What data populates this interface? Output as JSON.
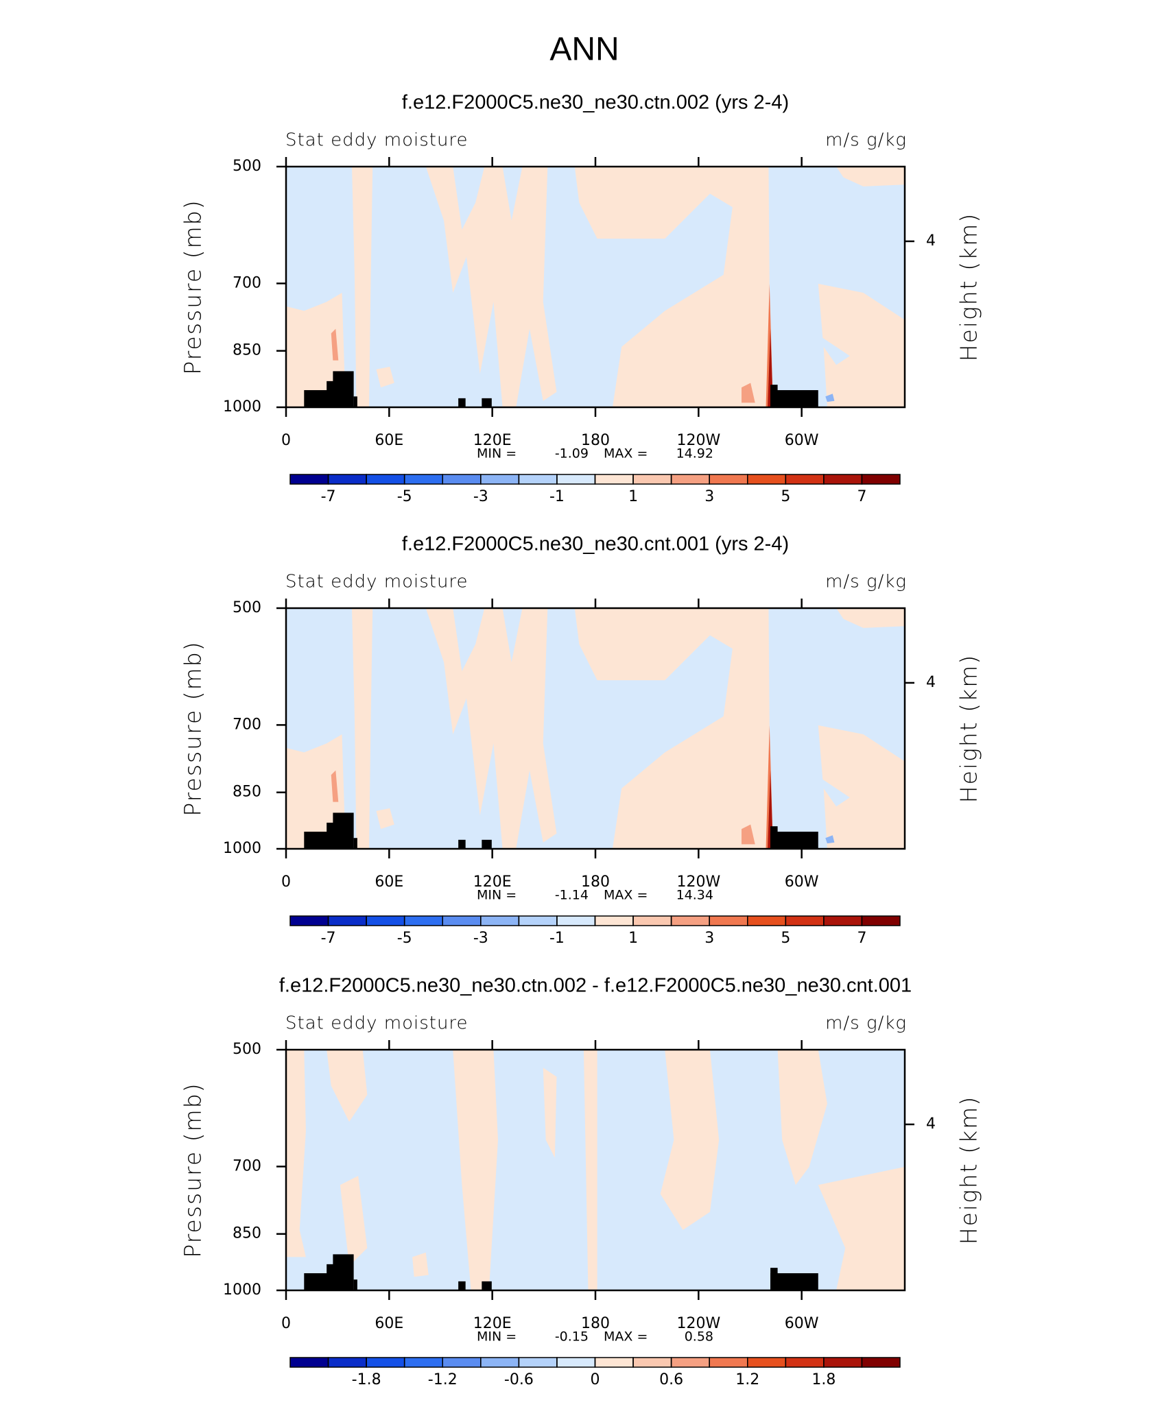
{
  "title": "ANN",
  "chart_data": [
    {
      "type": "contour",
      "title": "f.e12.F2000C5.ne30_ne30.ctn.002 (yrs 2-4)",
      "left_string": "Stat eddy moisture",
      "right_string": "m/s g/kg",
      "ylabel": "Pressure (mb)",
      "y2label": "Height (km)",
      "ylog": true,
      "ylim": [
        1000,
        500
      ],
      "yticks": [
        500,
        700,
        850,
        1000
      ],
      "y2lim": [
        0,
        5.8
      ],
      "y2ticks": [
        4
      ],
      "xlim": [
        0,
        360
      ],
      "xticks": [
        0,
        {
          "value": 60,
          "label": "60E"
        },
        {
          "value": 120,
          "label": "120E"
        },
        180,
        {
          "value": 240,
          "label": "120W"
        },
        {
          "value": 300,
          "label": "60W"
        }
      ],
      "min_label": "MIN =",
      "min": -1.09,
      "max_label": "MAX =",
      "max": 14.92,
      "colorbar": {
        "levels": [
          -7,
          -6,
          -5,
          -4,
          -3,
          -2,
          -1,
          0,
          1,
          2,
          3,
          4,
          5,
          6,
          7
        ],
        "ticks": [
          -7,
          -5,
          -3,
          -1,
          1,
          3,
          5,
          7
        ],
        "colors": [
          "#000090",
          "#0a2dc8",
          "#1450e6",
          "#2d6ef0",
          "#5a8cf0",
          "#8cb4f5",
          "#b4d2fa",
          "#d7e9fc",
          "#fde5d4",
          "#fac8b0",
          "#f5a082",
          "#f07850",
          "#e6501e",
          "#d23214",
          "#aa140a",
          "#800000"
        ]
      }
    },
    {
      "type": "contour",
      "title": "f.e12.F2000C5.ne30_ne30.cnt.001 (yrs 2-4)",
      "left_string": "Stat eddy moisture",
      "right_string": "m/s g/kg",
      "ylabel": "Pressure (mb)",
      "y2label": "Height (km)",
      "ylog": true,
      "ylim": [
        1000,
        500
      ],
      "yticks": [
        500,
        700,
        850,
        1000
      ],
      "y2lim": [
        0,
        5.8
      ],
      "y2ticks": [
        4
      ],
      "xlim": [
        0,
        360
      ],
      "xticks": [
        0,
        {
          "value": 60,
          "label": "60E"
        },
        {
          "value": 120,
          "label": "120E"
        },
        180,
        {
          "value": 240,
          "label": "120W"
        },
        {
          "value": 300,
          "label": "60W"
        }
      ],
      "min_label": "MIN =",
      "min": -1.14,
      "max_label": "MAX =",
      "max": 14.34,
      "colorbar": {
        "levels": [
          -7,
          -6,
          -5,
          -4,
          -3,
          -2,
          -1,
          0,
          1,
          2,
          3,
          4,
          5,
          6,
          7
        ],
        "ticks": [
          -7,
          -5,
          -3,
          -1,
          1,
          3,
          5,
          7
        ],
        "colors": [
          "#000090",
          "#0a2dc8",
          "#1450e6",
          "#2d6ef0",
          "#5a8cf0",
          "#8cb4f5",
          "#b4d2fa",
          "#d7e9fc",
          "#fde5d4",
          "#fac8b0",
          "#f5a082",
          "#f07850",
          "#e6501e",
          "#d23214",
          "#aa140a",
          "#800000"
        ]
      }
    },
    {
      "type": "contour",
      "title": "f.e12.F2000C5.ne30_ne30.ctn.002 - f.e12.F2000C5.ne30_ne30.cnt.001",
      "left_string": "Stat eddy moisture",
      "right_string": "m/s g/kg",
      "ylabel": "Pressure (mb)",
      "y2label": "Height (km)",
      "ylog": true,
      "ylim": [
        1000,
        500
      ],
      "yticks": [
        500,
        700,
        850,
        1000
      ],
      "y2lim": [
        0,
        5.8
      ],
      "y2ticks": [
        4
      ],
      "xlim": [
        0,
        360
      ],
      "xticks": [
        0,
        {
          "value": 60,
          "label": "60E"
        },
        {
          "value": 120,
          "label": "120E"
        },
        180,
        {
          "value": 240,
          "label": "120W"
        },
        {
          "value": 300,
          "label": "60W"
        }
      ],
      "min_label": "MIN =",
      "min": -0.15,
      "max_label": "MAX =",
      "max": 0.58,
      "colorbar": {
        "levels": [
          -2.1,
          -1.8,
          -1.5,
          -1.2,
          -0.9,
          -0.6,
          -0.3,
          0,
          0.3,
          0.6,
          0.9,
          1.2,
          1.5,
          1.8,
          2.1
        ],
        "ticks": [
          -1.8,
          -1.2,
          -0.6,
          0,
          0.6,
          1.2,
          1.8
        ],
        "colors": [
          "#000090",
          "#0a2dc8",
          "#1450e6",
          "#2d6ef0",
          "#5a8cf0",
          "#8cb4f5",
          "#b4d2fa",
          "#d7e9fc",
          "#fde5d4",
          "#fac8b0",
          "#f5a082",
          "#f07850",
          "#e6501e",
          "#d23214",
          "#aa140a",
          "#800000"
        ]
      }
    }
  ]
}
